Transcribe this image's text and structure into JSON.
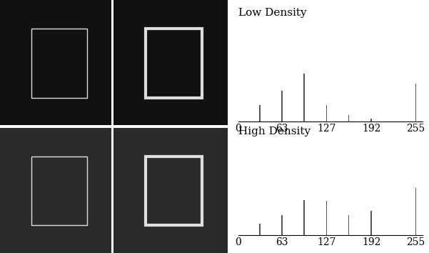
{
  "chart_data": [
    {
      "type": "bar",
      "title": "Low Density",
      "x": [
        31,
        63,
        95,
        127,
        159,
        191,
        255
      ],
      "values": [
        22,
        40,
        63,
        22,
        8,
        4,
        50
      ],
      "color": "#555555",
      "xlim": [
        0,
        265
      ],
      "xticks": [
        0,
        63,
        127,
        192,
        255
      ],
      "ylim": [
        0,
        70
      ],
      "tick_labels": "x"
    },
    {
      "type": "bar",
      "title": "High Density",
      "x": [
        31,
        63,
        95,
        127,
        159,
        191,
        255
      ],
      "values": [
        15,
        27,
        46,
        45,
        27,
        32,
        62
      ],
      "color": "#555555",
      "xlim": [
        0,
        265
      ],
      "xticks": [
        0,
        63,
        127,
        192,
        255
      ],
      "ylim": [
        0,
        70
      ],
      "tick_labels": "x"
    }
  ]
}
